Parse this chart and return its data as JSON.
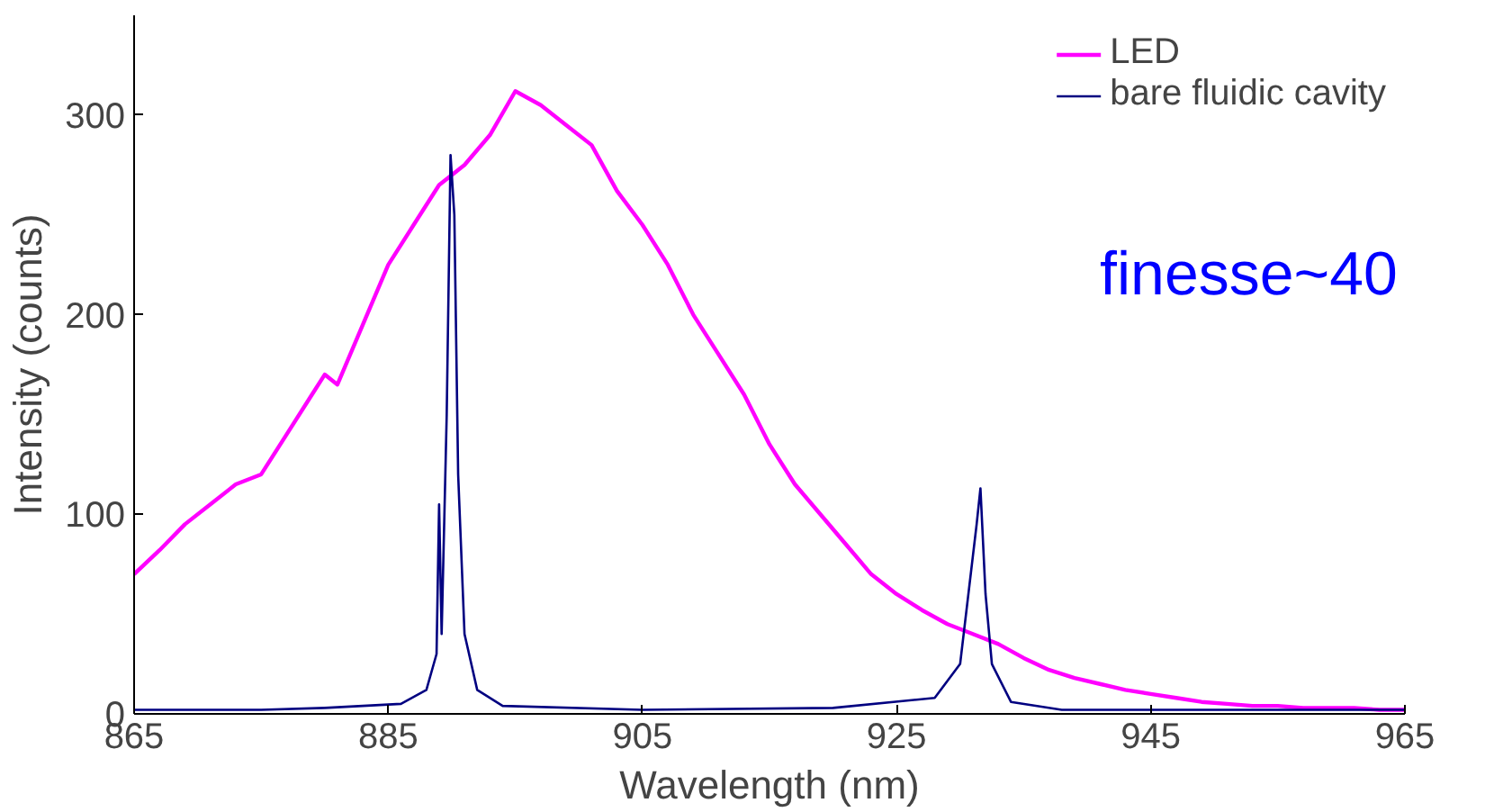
{
  "chart_data": {
    "type": "line",
    "xlabel": "Wavelength (nm)",
    "ylabel": "Intensity (counts)",
    "xlim": [
      865,
      965
    ],
    "xticks": [
      865,
      885,
      905,
      925,
      945,
      965
    ],
    "ylim": [
      0,
      350
    ],
    "yticks": [
      0,
      100,
      200,
      300
    ],
    "grid": false,
    "legend": "top right",
    "marker": "none",
    "line_style": "solid",
    "annotations": [
      "finesse~40"
    ],
    "series": [
      {
        "name": "LED",
        "color": "#ff00ff",
        "x": [
          865,
          867,
          869,
          871,
          873,
          875,
          877,
          879,
          880,
          881,
          883,
          885,
          887,
          889,
          891,
          893,
          895,
          897,
          899,
          901,
          903,
          905,
          907,
          909,
          911,
          913,
          915,
          917,
          919,
          921,
          923,
          925,
          927,
          929,
          931,
          933,
          935,
          937,
          939,
          941,
          943,
          945,
          947,
          949,
          951,
          953,
          955,
          957,
          959,
          961,
          963,
          965
        ],
        "values": [
          70,
          82,
          95,
          105,
          115,
          120,
          140,
          160,
          170,
          165,
          195,
          225,
          245,
          265,
          275,
          290,
          312,
          305,
          295,
          285,
          262,
          245,
          225,
          200,
          180,
          160,
          135,
          115,
          100,
          85,
          70,
          60,
          52,
          45,
          40,
          35,
          28,
          22,
          18,
          15,
          12,
          10,
          8,
          6,
          5,
          4,
          4,
          3,
          3,
          3,
          2,
          2
        ]
      },
      {
        "name": "bare fluidic cavity",
        "color": "#000080",
        "x": [
          865,
          875,
          880,
          886,
          888,
          888.8,
          889.0,
          889.2,
          889.6,
          889.9,
          890.2,
          890.5,
          891,
          892,
          894,
          905,
          920,
          928,
          930,
          931.3,
          931.6,
          932,
          932.5,
          934,
          938,
          950,
          965
        ],
        "values": [
          2,
          2,
          3,
          5,
          12,
          30,
          105,
          40,
          150,
          280,
          250,
          120,
          40,
          12,
          4,
          2,
          3,
          8,
          25,
          95,
          113,
          60,
          25,
          6,
          2,
          2,
          2
        ]
      }
    ]
  }
}
